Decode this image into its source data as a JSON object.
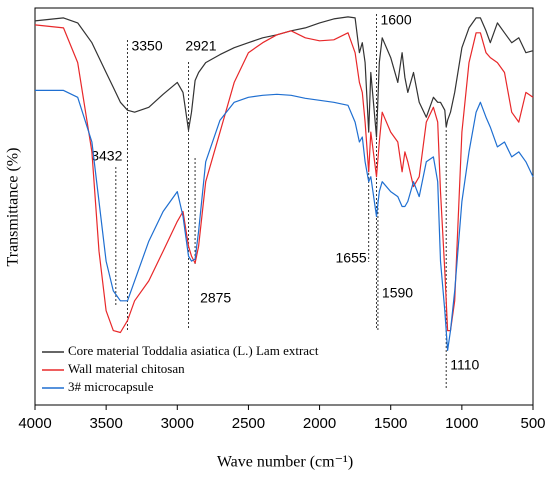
{
  "chart_data": {
    "type": "line",
    "xlabel": "Wave number (cm⁻¹)",
    "ylabel": "Transmittance (%)",
    "xlim": [
      4000,
      500
    ],
    "xticks": [
      4000,
      3500,
      3000,
      2500,
      2000,
      1500,
      1000,
      500
    ],
    "ylim": [
      0,
      400
    ],
    "legend": "lower left",
    "x": [
      4000,
      3800,
      3700,
      3600,
      3550,
      3500,
      3450,
      3400,
      3350,
      3300,
      3200,
      3100,
      3000,
      2960,
      2921,
      2900,
      2875,
      2850,
      2800,
      2700,
      2600,
      2500,
      2400,
      2300,
      2200,
      2100,
      2000,
      1900,
      1800,
      1750,
      1720,
      1700,
      1680,
      1655,
      1640,
      1600,
      1580,
      1560,
      1500,
      1450,
      1420,
      1400,
      1380,
      1340,
      1300,
      1250,
      1200,
      1170,
      1150,
      1120,
      1110,
      1100,
      1080,
      1050,
      1000,
      950,
      900,
      870,
      830,
      800,
      750,
      700,
      650,
      600,
      550,
      500
    ],
    "series": [
      {
        "name": "Core material Toddalia asiatica (L.) Lam extract",
        "color": "#333333",
        "values": [
          387,
          390,
          385,
          365,
          350,
          335,
          320,
          305,
          297,
          295,
          300,
          313,
          325,
          315,
          277,
          295,
          327,
          335,
          345,
          353,
          360,
          365,
          370,
          373,
          377,
          380,
          385,
          389,
          391,
          390,
          355,
          365,
          345,
          275,
          335,
          270,
          345,
          370,
          350,
          325,
          355,
          330,
          315,
          335,
          305,
          290,
          310,
          305,
          305,
          297,
          280,
          287,
          295,
          315,
          360,
          380,
          390,
          390,
          377,
          365,
          385,
          375,
          365,
          370,
          355,
          357
        ]
      },
      {
        "name": "Wall material chitosan",
        "color": "#e8282a",
        "values": [
          383,
          380,
          345,
          255,
          155,
          95,
          75,
          73,
          85,
          105,
          125,
          155,
          185,
          195,
          160,
          150,
          143,
          160,
          225,
          275,
          325,
          355,
          365,
          373,
          377,
          370,
          367,
          368,
          375,
          355,
          325,
          315,
          285,
          235,
          275,
          230,
          265,
          295,
          275,
          265,
          235,
          255,
          245,
          220,
          230,
          285,
          300,
          285,
          215,
          135,
          105,
          75,
          75,
          105,
          275,
          345,
          375,
          375,
          355,
          350,
          345,
          335,
          295,
          285,
          315,
          310
        ]
      },
      {
        "name": "3# microcapsule",
        "color": "#1f6fd1",
        "values": [
          317,
          317,
          310,
          265,
          205,
          145,
          115,
          105,
          105,
          125,
          165,
          195,
          215,
          190,
          150,
          145,
          147,
          175,
          245,
          287,
          305,
          310,
          312,
          313,
          312,
          309,
          307,
          305,
          302,
          285,
          265,
          270,
          245,
          225,
          230,
          190,
          215,
          225,
          215,
          210,
          200,
          200,
          205,
          225,
          210,
          245,
          250,
          225,
          145,
          95,
          75,
          55,
          75,
          115,
          205,
          255,
          295,
          305,
          290,
          280,
          260,
          265,
          250,
          255,
          245,
          230
        ]
      }
    ],
    "annotations": [
      {
        "text": "3350",
        "x": 3350
      },
      {
        "text": "2921",
        "x": 2921
      },
      {
        "text": "1600",
        "x": 1600
      },
      {
        "text": "3432",
        "x": 3432
      },
      {
        "text": "2875",
        "x": 2875
      },
      {
        "text": "1655",
        "x": 1655
      },
      {
        "text": "1590",
        "x": 1590
      },
      {
        "text": "1110",
        "x": 1110
      }
    ]
  }
}
